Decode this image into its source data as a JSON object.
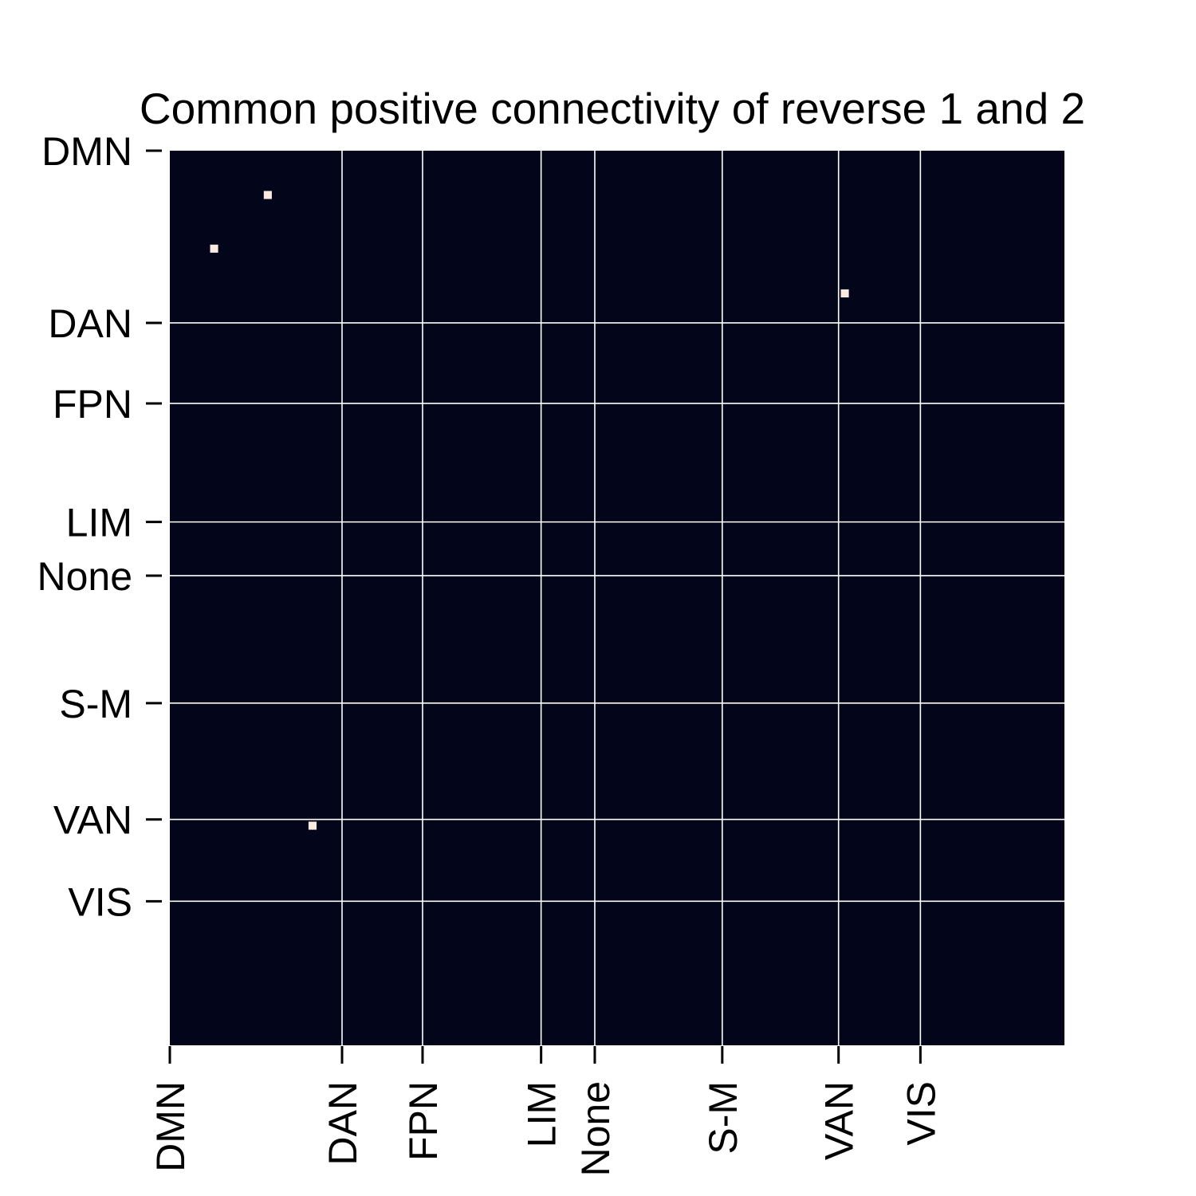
{
  "chart_data": {
    "type": "heatmap",
    "title": "Common positive connectivity of reverse 1 and  2",
    "xlabel": "",
    "ylabel": "",
    "matrix_size": 200,
    "background_color": "#03061a",
    "cell_color": "#faeae0",
    "gridline_color": "#ffffff",
    "network_labels": [
      "DMN",
      "DAN",
      "FPN",
      "LIM",
      "None",
      "S-M",
      "VAN",
      "VIS"
    ],
    "network_boundaries": [
      0,
      38.5,
      56.5,
      83,
      95,
      123.5,
      149.5,
      167.8
    ],
    "cells": [
      {
        "row": 9,
        "col": 21,
        "value": 1
      },
      {
        "row": 21,
        "col": 9,
        "value": 1
      },
      {
        "row": 31,
        "col": 150,
        "value": 1
      },
      {
        "row": 150,
        "col": 31,
        "value": 1
      }
    ]
  }
}
